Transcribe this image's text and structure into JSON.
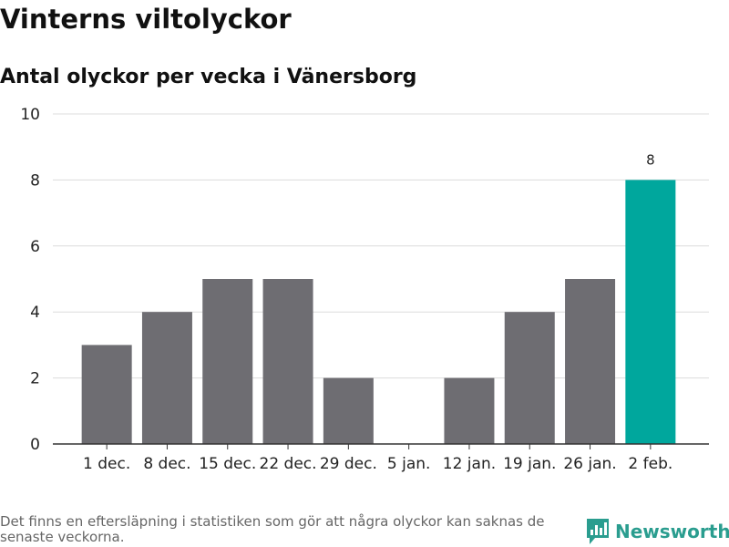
{
  "header": {
    "title": "Vinterns viltolyckor",
    "subtitle": "Antal olyckor per vecka i Vänersborg"
  },
  "footer": {
    "note": "Det finns en eftersläpning i statistiken som gör att några olyckor kan saknas de senaste veckorna.",
    "brand": "Newsworthy"
  },
  "colors": {
    "bar": "#6e6d72",
    "highlight": "#00a79d",
    "brand": "#2a9d8f"
  },
  "chart_data": {
    "type": "bar",
    "categories": [
      "1 dec.",
      "8 dec.",
      "15 dec.",
      "22 dec.",
      "29 dec.",
      "5 jan.",
      "12 jan.",
      "19 jan.",
      "26 jan.",
      "2 feb."
    ],
    "values": [
      3,
      4,
      5,
      5,
      2,
      0,
      2,
      4,
      5,
      8
    ],
    "highlight_index": 9,
    "data_labels": [
      {
        "index": 9,
        "text": "8"
      }
    ],
    "yticks": [
      0,
      2,
      4,
      6,
      8,
      10
    ],
    "ylim": [
      0,
      10
    ],
    "xlabel": "",
    "ylabel": "",
    "grid": true,
    "legend": "none"
  }
}
